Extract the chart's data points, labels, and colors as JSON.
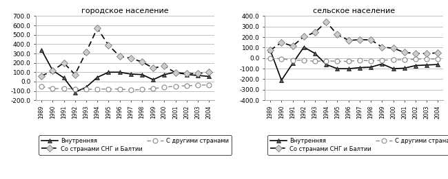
{
  "years": [
    1989,
    1990,
    1991,
    1992,
    1993,
    1994,
    1995,
    1996,
    1997,
    1998,
    1999,
    2000,
    2001,
    2002,
    2003,
    2004
  ],
  "urban": {
    "title": "городское население",
    "internal": [
      340,
      120,
      40,
      -115,
      -60,
      45,
      100,
      100,
      80,
      75,
      20,
      75,
      100,
      75,
      65,
      55
    ],
    "cis": [
      60,
      115,
      200,
      75,
      315,
      570,
      390,
      270,
      250,
      210,
      145,
      165,
      95,
      85,
      85,
      100
    ],
    "other": [
      -55,
      -75,
      -75,
      -80,
      -85,
      -80,
      -80,
      -80,
      -90,
      -85,
      -75,
      -60,
      -50,
      -45,
      -40,
      -35
    ],
    "ylim": [
      -200,
      700
    ],
    "yticks": [
      -200,
      -100,
      0,
      100,
      200,
      300,
      400,
      500,
      600,
      700
    ]
  },
  "rural": {
    "title": "сельское население",
    "internal": [
      75,
      -210,
      -50,
      105,
      45,
      -60,
      -100,
      -100,
      -90,
      -85,
      -55,
      -100,
      -95,
      -70,
      -65,
      -60
    ],
    "cis": [
      75,
      150,
      115,
      205,
      245,
      345,
      225,
      170,
      175,
      175,
      105,
      95,
      55,
      45,
      45,
      50
    ],
    "other": [
      0,
      -5,
      -20,
      -20,
      -30,
      -25,
      -30,
      -30,
      -20,
      -25,
      -20,
      -15,
      -15,
      -10,
      -5,
      -10
    ],
    "ylim": [
      -400,
      400
    ],
    "yticks": [
      -400,
      -300,
      -200,
      -100,
      0,
      100,
      200,
      300,
      400
    ]
  },
  "legend": {
    "internal_label": "Внутренняя",
    "cis_label": "Со странами СНГ и Балтии",
    "other_label": "С другими странами"
  }
}
